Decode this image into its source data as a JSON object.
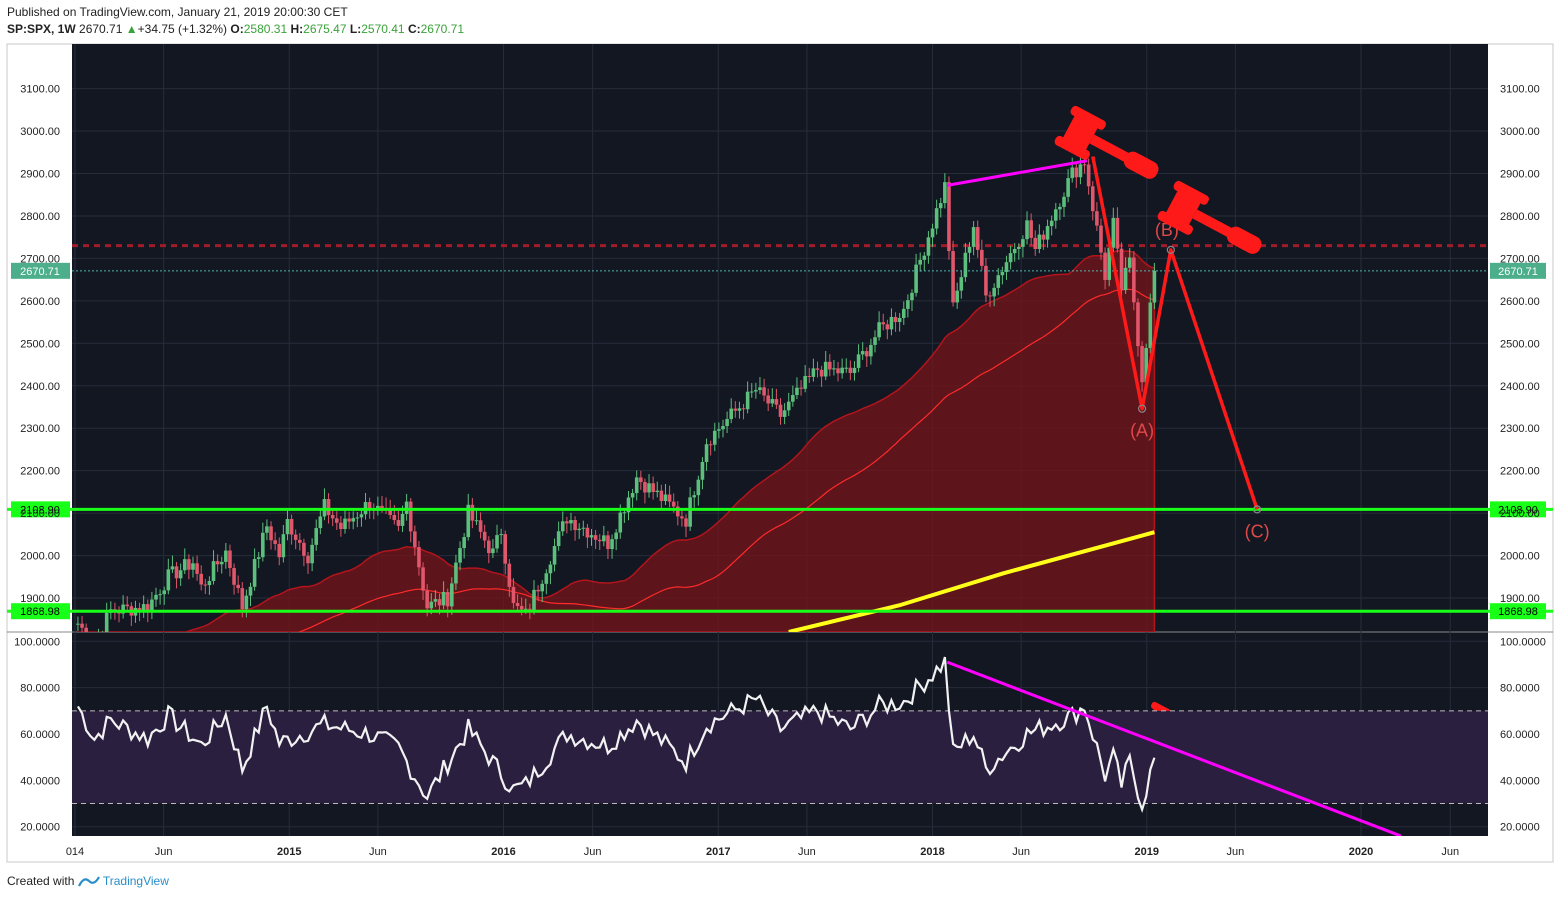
{
  "header": {
    "published": "Published on TradingView.com, January 21, 2019 20:00:30 CET",
    "symbol": "SP:SPX, 1W",
    "last": "2670.71",
    "change": "+34.75 (+1.32%)",
    "o_label": "O:",
    "o_value": "2580.31",
    "h_label": "H:",
    "h_value": "2675.47",
    "l_label": "L:",
    "l_value": "2570.41",
    "c_label": "C:",
    "c_value": "2670.71"
  },
  "footer": {
    "created_with": "Created with",
    "brand": "TradingView"
  },
  "colors": {
    "background": "#121722",
    "grid": "#262c3a",
    "candle_up": "#5cbf7c",
    "candle_down": "#e0566a",
    "support": "#18ff18",
    "magenta": "#ff00ff",
    "ma200": "#ffff1a",
    "wave": "#ff1a1a",
    "rsi_band": "#2a1f3f"
  },
  "chart_data": {
    "type": "candlestick",
    "price_axis": {
      "ticks": [
        "3100.00",
        "3000.00",
        "2900.00",
        "2800.00",
        "2700.00",
        "2600.00",
        "2500.00",
        "2400.00",
        "2300.00",
        "2200.00",
        "2100.00",
        "2000.00",
        "1900.00"
      ],
      "range": [
        1820,
        3205
      ]
    },
    "rsi_axis": {
      "ticks": [
        "100.0000",
        "80.0000",
        "60.0000",
        "40.0000",
        "20.0000"
      ],
      "range": [
        16,
        104
      ],
      "band": [
        30,
        70
      ]
    },
    "time_axis": {
      "labels": [
        "014",
        "Jun",
        "2015",
        "Jun",
        "2016",
        "Jun",
        "2017",
        "Jun",
        "2018",
        "Jun",
        "2019",
        "Jun",
        "2020",
        "Jun"
      ],
      "bold": [
        "2015",
        "2016",
        "2017",
        "2018",
        "2019",
        "2020"
      ]
    },
    "last_price_label": "2670.71",
    "support_levels": [
      {
        "label": "2108.90",
        "value": 2108.9
      },
      {
        "label": "1868.98",
        "value": 1868.98
      }
    ],
    "resistance_value": 2730,
    "wave_labels": [
      "(A)",
      "(B)",
      "(C)"
    ],
    "wave_points": [
      {
        "x": "2018-10-01",
        "y": 2940
      },
      {
        "x": "2018-12-24",
        "y": 2346
      },
      {
        "x": "2019-02-11",
        "y": 2720
      },
      {
        "x": "2019-07-08",
        "y": 2108.9
      }
    ],
    "magenta_price_line": [
      {
        "x": "2018-01-26",
        "y": 2872
      },
      {
        "x": "2018-09-21",
        "y": 2930
      }
    ],
    "magenta_rsi_line": [
      {
        "x": "2018-01-26",
        "y": 91
      },
      {
        "x": "2020-03-09",
        "y": 16
      }
    ],
    "ma200_segment": [
      {
        "x": "2017-05-01",
        "y": 1820
      },
      {
        "x": "2017-11-06",
        "y": 1883
      },
      {
        "x": "2018-05-01",
        "y": 1958
      },
      {
        "x": "2019-01-14",
        "y": 2055
      }
    ],
    "price_anchors": [
      [
        "2014-01-06",
        1840
      ],
      [
        "2014-02-03",
        1790
      ],
      [
        "2014-03-03",
        1870
      ],
      [
        "2014-05-05",
        1880
      ],
      [
        "2014-06-09",
        1950
      ],
      [
        "2014-07-21",
        1985
      ],
      [
        "2014-08-04",
        1925
      ],
      [
        "2014-09-15",
        2010
      ],
      [
        "2014-10-13",
        1880
      ],
      [
        "2014-11-24",
        2070
      ],
      [
        "2014-12-15",
        2000
      ],
      [
        "2014-12-29",
        2080
      ],
      [
        "2015-02-02",
        2000
      ],
      [
        "2015-03-02",
        2115
      ],
      [
        "2015-03-30",
        2065
      ],
      [
        "2015-05-18",
        2125
      ],
      [
        "2015-07-06",
        2060
      ],
      [
        "2015-07-20",
        2125
      ],
      [
        "2015-08-24",
        1880
      ],
      [
        "2015-09-28",
        1900
      ],
      [
        "2015-11-02",
        2100
      ],
      [
        "2015-12-14",
        2005
      ],
      [
        "2015-12-28",
        2060
      ],
      [
        "2016-01-18",
        1880
      ],
      [
        "2016-02-08",
        1860
      ],
      [
        "2016-04-18",
        2090
      ],
      [
        "2016-06-27",
        2030
      ],
      [
        "2016-08-15",
        2185
      ],
      [
        "2016-11-07",
        2085
      ],
      [
        "2016-12-12",
        2270
      ],
      [
        "2017-03-06",
        2390
      ],
      [
        "2017-04-17",
        2330
      ],
      [
        "2017-06-19",
        2440
      ],
      [
        "2017-08-14",
        2430
      ],
      [
        "2017-10-02",
        2530
      ],
      [
        "2017-11-13",
        2580
      ],
      [
        "2018-01-22",
        2870
      ],
      [
        "2018-02-05",
        2580
      ],
      [
        "2018-03-12",
        2780
      ],
      [
        "2018-04-02",
        2610
      ],
      [
        "2018-06-11",
        2780
      ],
      [
        "2018-06-25",
        2720
      ],
      [
        "2018-08-27",
        2900
      ],
      [
        "2018-09-17",
        2930
      ],
      [
        "2018-10-22",
        2660
      ],
      [
        "2018-11-05",
        2780
      ],
      [
        "2018-11-19",
        2630
      ],
      [
        "2018-12-03",
        2690
      ],
      [
        "2018-12-24",
        2420
      ],
      [
        "2019-01-14",
        2670.71
      ]
    ],
    "rsi_anchors": [
      [
        "2014-01-06",
        72
      ],
      [
        "2014-02-03",
        58
      ],
      [
        "2014-03-03",
        66
      ],
      [
        "2014-05-05",
        58
      ],
      [
        "2014-06-09",
        68
      ],
      [
        "2014-08-04",
        55
      ],
      [
        "2014-09-15",
        68
      ],
      [
        "2014-10-13",
        45
      ],
      [
        "2014-11-24",
        72
      ],
      [
        "2014-12-15",
        56
      ],
      [
        "2015-03-02",
        64
      ],
      [
        "2015-05-18",
        60
      ],
      [
        "2015-07-06",
        54
      ],
      [
        "2015-08-24",
        33
      ],
      [
        "2015-11-02",
        62
      ],
      [
        "2016-01-18",
        36
      ],
      [
        "2016-02-08",
        38
      ],
      [
        "2016-04-18",
        60
      ],
      [
        "2016-06-27",
        55
      ],
      [
        "2016-08-15",
        66
      ],
      [
        "2016-11-07",
        48
      ],
      [
        "2016-12-12",
        64
      ],
      [
        "2017-03-06",
        75
      ],
      [
        "2017-04-17",
        62
      ],
      [
        "2017-06-19",
        70
      ],
      [
        "2017-08-14",
        62
      ],
      [
        "2017-10-02",
        72
      ],
      [
        "2017-11-13",
        74
      ],
      [
        "2018-01-22",
        91
      ],
      [
        "2018-02-05",
        52
      ],
      [
        "2018-03-12",
        60
      ],
      [
        "2018-04-02",
        45
      ],
      [
        "2018-06-11",
        60
      ],
      [
        "2018-08-27",
        68
      ],
      [
        "2018-09-17",
        72
      ],
      [
        "2018-10-22",
        42
      ],
      [
        "2018-11-05",
        50
      ],
      [
        "2018-11-19",
        38
      ],
      [
        "2018-12-03",
        48
      ],
      [
        "2018-12-24",
        30
      ],
      [
        "2019-01-14",
        49
      ]
    ]
  }
}
